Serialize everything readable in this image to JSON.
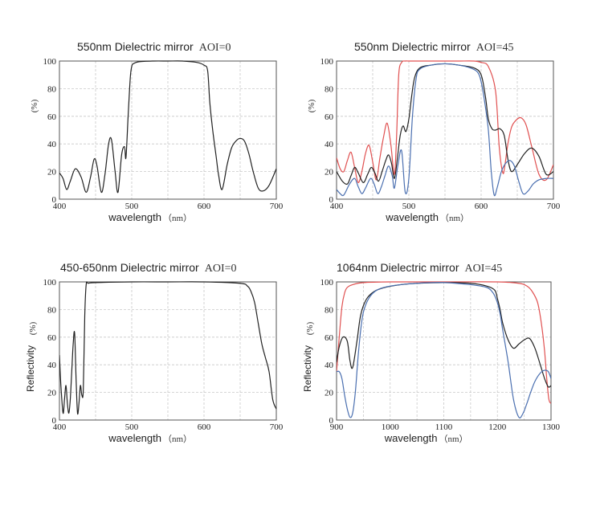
{
  "colors": {
    "black": "#222222",
    "red": "#e05050",
    "blue": "#4a6fb0"
  },
  "chart_data": [
    {
      "type": "line",
      "title": "550nm Dielectric mirror",
      "aoi": "AOI=0",
      "xlabel": "wavelength",
      "xunit": "（nm）",
      "ylabel": "",
      "yunit": "(%)",
      "xlim": [
        400,
        700
      ],
      "ylim": [
        0,
        100
      ],
      "xticks": [
        400,
        500,
        600,
        700
      ],
      "yticks": [
        0,
        20,
        40,
        60,
        80,
        100
      ],
      "series": [
        {
          "color": "black",
          "x": [
            400,
            405,
            410,
            415,
            422,
            430,
            437,
            443,
            448,
            452,
            458,
            463,
            468,
            472,
            477,
            481,
            486,
            490,
            492,
            495,
            498,
            500,
            502,
            510,
            530,
            550,
            570,
            590,
            600,
            605,
            608,
            612,
            617,
            620,
            625,
            632,
            638,
            644,
            650,
            656,
            662,
            668,
            675,
            682,
            690,
            700
          ],
          "y": [
            19,
            15,
            7,
            13,
            22,
            16,
            5,
            16,
            29,
            24,
            5,
            18,
            40,
            43,
            20,
            5,
            32,
            38,
            30,
            60,
            88,
            96,
            98,
            99.5,
            100,
            100,
            100,
            99,
            97,
            93,
            70,
            50,
            30,
            18,
            7,
            25,
            37,
            42,
            44,
            42,
            33,
            20,
            8,
            6,
            10,
            22
          ]
        }
      ]
    },
    {
      "type": "line",
      "title": "550nm Dielectric mirror",
      "aoi": "AOI=45",
      "xlabel": "wavelength",
      "xunit": "（nm）",
      "ylabel": "",
      "yunit": "(%)",
      "xlim": [
        400,
        700
      ],
      "ylim": [
        0,
        100
      ],
      "xticks": [
        400,
        500,
        600,
        700
      ],
      "yticks": [
        0,
        20,
        40,
        60,
        80,
        100
      ],
      "series": [
        {
          "color": "red",
          "x": [
            400,
            405,
            410,
            415,
            420,
            425,
            430,
            435,
            440,
            445,
            450,
            455,
            460,
            465,
            470,
            475,
            480,
            483,
            486,
            490,
            495,
            500,
            510,
            530,
            550,
            570,
            590,
            600,
            610,
            620,
            625,
            630,
            633,
            637,
            642,
            648,
            655,
            662,
            670,
            680,
            690,
            700
          ],
          "y": [
            30,
            22,
            20,
            28,
            34,
            23,
            12,
            20,
            33,
            39,
            27,
            14,
            30,
            45,
            55,
            40,
            18,
            45,
            90,
            99,
            100,
            100,
            100,
            100,
            100,
            100,
            100,
            99,
            96,
            78,
            38,
            19,
            25,
            40,
            52,
            57,
            59,
            54,
            38,
            18,
            14,
            25
          ]
        },
        {
          "color": "black",
          "x": [
            400,
            408,
            415,
            420,
            425,
            430,
            437,
            443,
            448,
            453,
            458,
            463,
            468,
            472,
            476,
            480,
            484,
            488,
            492,
            496,
            500,
            504,
            508,
            515,
            530,
            550,
            570,
            590,
            600,
            606,
            610,
            615,
            620,
            626,
            632,
            637,
            642,
            650,
            660,
            670,
            680,
            690,
            700
          ],
          "y": [
            20,
            13,
            11,
            17,
            23,
            19,
            12,
            18,
            23,
            19,
            13,
            20,
            28,
            32,
            26,
            15,
            29,
            46,
            53,
            49,
            58,
            75,
            88,
            95,
            97,
            98,
            97,
            95,
            90,
            74,
            58,
            51,
            50,
            51,
            46,
            29,
            20,
            25,
            33,
            37,
            31,
            18,
            20
          ]
        },
        {
          "color": "blue",
          "x": [
            400,
            405,
            410,
            418,
            425,
            430,
            435,
            440,
            447,
            452,
            457,
            462,
            467,
            472,
            477,
            480,
            485,
            490,
            495,
            500,
            505,
            510,
            515,
            530,
            550,
            570,
            585,
            595,
            600,
            605,
            610,
            614,
            618,
            622,
            628,
            634,
            640,
            646,
            652,
            658,
            665,
            672,
            680,
            690,
            700
          ],
          "y": [
            7,
            4,
            3,
            11,
            15,
            9,
            4,
            8,
            15,
            11,
            4,
            9,
            17,
            24,
            17,
            8,
            25,
            35,
            5,
            15,
            60,
            87,
            94,
            97,
            98,
            97,
            95,
            92,
            85,
            70,
            50,
            20,
            3,
            8,
            20,
            26,
            28,
            24,
            13,
            4,
            6,
            11,
            14,
            15,
            15
          ]
        }
      ]
    },
    {
      "type": "line",
      "title": "450-650nm Dielectric mirror",
      "aoi": "AOI=0",
      "xlabel": "wavelength",
      "xunit": "（nm）",
      "ylabel": "Reflectivity",
      "yunit": "(%)",
      "xlim": [
        400,
        700
      ],
      "ylim": [
        0,
        100
      ],
      "xticks": [
        400,
        500,
        600,
        700
      ],
      "yticks": [
        0,
        20,
        40,
        60,
        80,
        100
      ],
      "series": [
        {
          "color": "black",
          "x": [
            400,
            402,
            405,
            407,
            409,
            411,
            413,
            415,
            417,
            419,
            421,
            423,
            425,
            427,
            429,
            431,
            433,
            435,
            437,
            440,
            450,
            500,
            550,
            600,
            650,
            660,
            665,
            670,
            675,
            680,
            685,
            690,
            695,
            700
          ],
          "y": [
            47,
            25,
            5,
            15,
            25,
            12,
            5,
            15,
            35,
            55,
            63,
            30,
            5,
            12,
            25,
            18,
            22,
            75,
            98,
            99,
            99.5,
            100,
            100,
            100,
            99,
            97,
            93,
            85,
            70,
            55,
            45,
            35,
            15,
            8
          ]
        }
      ]
    },
    {
      "type": "line",
      "title": "1064nm Dielectric mirror",
      "aoi": "AOI=45",
      "xlabel": "wavelength",
      "xunit": "（nm）",
      "ylabel": "Reflectivity",
      "yunit": "(%)",
      "xlim": [
        900,
        1300
      ],
      "ylim": [
        0,
        100
      ],
      "xticks": [
        900,
        1000,
        1100,
        1200,
        1300
      ],
      "yticks": [
        0,
        20,
        40,
        60,
        80,
        100
      ],
      "series": [
        {
          "color": "red",
          "x": [
            900,
            905,
            910,
            915,
            920,
            930,
            950,
            1000,
            1100,
            1200,
            1240,
            1255,
            1265,
            1275,
            1282,
            1288,
            1292,
            1296,
            1300
          ],
          "y": [
            35,
            60,
            82,
            92,
            96,
            98,
            99.5,
            100,
            100,
            100,
            99,
            97,
            93,
            85,
            70,
            50,
            30,
            15,
            12
          ]
        },
        {
          "color": "black",
          "x": [
            900,
            905,
            912,
            920,
            925,
            930,
            938,
            945,
            955,
            970,
            990,
            1020,
            1050,
            1100,
            1150,
            1180,
            1195,
            1200,
            1205,
            1210,
            1220,
            1230,
            1240,
            1250,
            1260,
            1270,
            1280,
            1288,
            1295,
            1300
          ],
          "y": [
            42,
            53,
            60,
            57,
            43,
            38,
            57,
            76,
            87,
            93,
            96,
            98,
            99,
            99.5,
            99,
            97,
            94,
            88,
            80,
            70,
            58,
            52,
            55,
            58,
            59,
            52,
            40,
            30,
            24,
            25
          ]
        },
        {
          "color": "blue",
          "x": [
            900,
            905,
            910,
            915,
            920,
            925,
            930,
            935,
            940,
            945,
            950,
            960,
            975,
            1000,
            1050,
            1100,
            1150,
            1180,
            1190,
            1195,
            1200,
            1205,
            1210,
            1220,
            1230,
            1240,
            1248,
            1255,
            1262,
            1270,
            1280,
            1288,
            1295,
            1300
          ],
          "y": [
            35,
            35,
            30,
            18,
            8,
            2,
            5,
            20,
            45,
            65,
            78,
            88,
            94,
            97,
            99,
            99.5,
            98,
            96,
            93,
            90,
            85,
            77,
            65,
            42,
            15,
            2,
            5,
            12,
            20,
            28,
            34,
            36,
            35,
            30
          ]
        }
      ]
    }
  ]
}
